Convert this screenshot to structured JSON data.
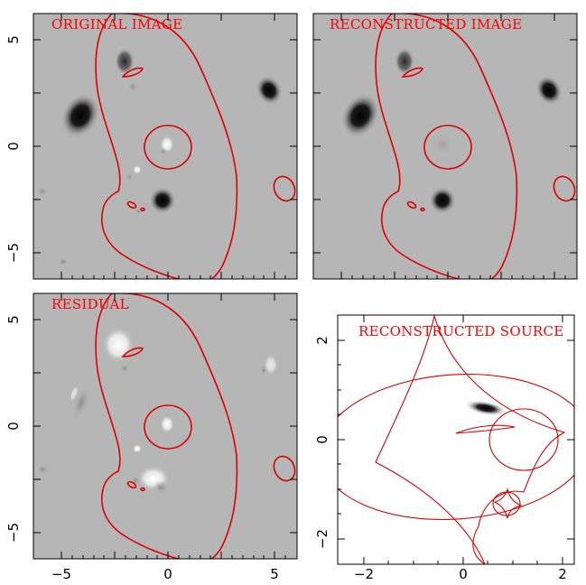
{
  "panels": {
    "original": {
      "label": "ORIGINAL IMAGE"
    },
    "reconstructed": {
      "label": "RECONSTRUCTED IMAGE"
    },
    "residual": {
      "label": "RESIDUAL"
    },
    "source": {
      "label": "RECONSTRUCTED SOURCE"
    }
  },
  "image_axes": {
    "x_ticks": [
      "−5",
      "0",
      "5"
    ],
    "y_ticks": [
      "5",
      "0",
      "−5"
    ]
  },
  "source_axes": {
    "x_ticks": [
      "−2",
      "0",
      "2"
    ],
    "y_ticks": [
      "2",
      "0",
      "−2"
    ]
  },
  "colors": {
    "contour": "#dd0000",
    "label": "#ff0000",
    "background_gray": "#b6b6b6"
  }
}
